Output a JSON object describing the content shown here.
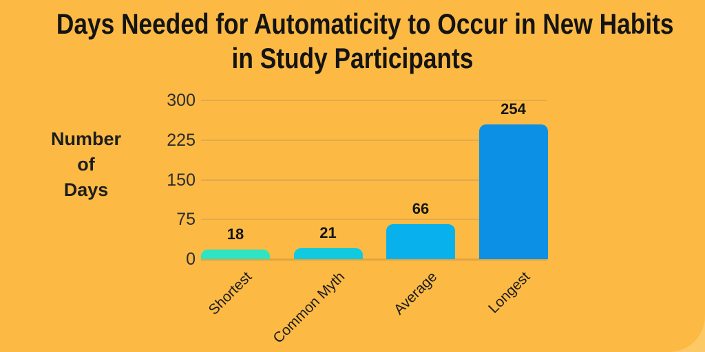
{
  "colors": {
    "background": "#fcba45",
    "page_background": "#fdc966",
    "gridline": "#e2a94e",
    "axis_line": "#e0a340",
    "text": "#1a1a1a"
  },
  "chart_data": {
    "type": "bar",
    "title": "Days Needed for Automaticity to Occur in New Habits in Study Participants",
    "title_lines": [
      "Days Needed for Automaticity to Occur in New Habits",
      "in Study Participants"
    ],
    "ylabel": "Number of Days",
    "ylabel_lines": [
      "Number",
      "of",
      "Days"
    ],
    "xlabel": "",
    "categories": [
      "Shortest",
      "Common Myth",
      "Average",
      "Longest"
    ],
    "values": [
      18,
      21,
      66,
      254
    ],
    "data_labels": [
      "18",
      "21",
      "66",
      "254"
    ],
    "bar_colors": [
      "#2de4c3",
      "#10cae2",
      "#09b1ec",
      "#0c90e6"
    ],
    "y_ticks": [
      300,
      225,
      150,
      75,
      0
    ],
    "ylim": [
      0,
      300
    ],
    "grid": true,
    "legend": "none"
  }
}
